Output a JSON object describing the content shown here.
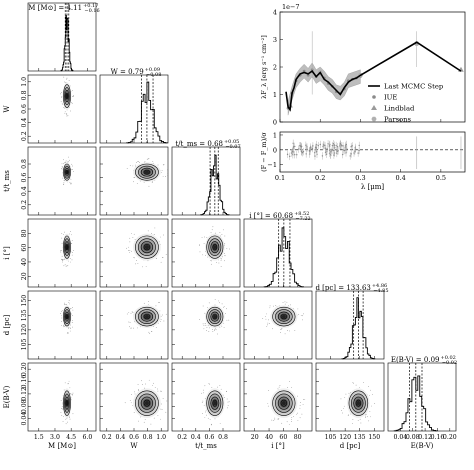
{
  "chart_data": [
    {
      "type": "corner",
      "parameters": [
        {
          "label": "M [M⊙]",
          "title": "M [M⊙] = 4.11",
          "sup": "+0.17",
          "sub": "−0.16",
          "median": 4.11,
          "q16": 3.95,
          "q84": 4.28,
          "range": [
            0.5,
            6.8
          ],
          "ticks": [
            1.5,
            3.0,
            4.5,
            6.0
          ],
          "tick_labels": [
            "1.5",
            "3.0",
            "4.5",
            "6.0"
          ]
        },
        {
          "label": "W",
          "title": "W = 0.79",
          "sup": "+0.09",
          "sub": "−0.08",
          "median": 0.79,
          "q16": 0.71,
          "q84": 0.88,
          "range": [
            0.1,
            1.1
          ],
          "ticks": [
            0.2,
            0.4,
            0.6,
            0.8,
            1.0
          ],
          "tick_labels": [
            "0.2",
            "0.4",
            "0.6",
            "0.8",
            "1.0"
          ]
        },
        {
          "label": "t/t_ms",
          "title": "t/t_ms = 0.68",
          "sup": "+0.05",
          "sub": "−0.07",
          "median": 0.68,
          "q16": 0.61,
          "q84": 0.73,
          "range": [
            0.05,
            1.05
          ],
          "ticks": [
            0.2,
            0.4,
            0.6,
            0.8
          ],
          "tick_labels": [
            "0.2",
            "0.4",
            "0.6",
            "0.8"
          ]
        },
        {
          "label": "i [°]",
          "title": "i [°] = 60.68",
          "sup": "+8.52",
          "sub": "−7.22",
          "median": 60.68,
          "q16": 53.46,
          "q84": 69.2,
          "range": [
            5,
            100
          ],
          "ticks": [
            20,
            40,
            60,
            80
          ],
          "tick_labels": [
            "20",
            "40",
            "60",
            "80"
          ]
        },
        {
          "label": "d [pc]",
          "title": "d [pc] = 133.63",
          "sup": "+4.86",
          "sub": "−4.85",
          "median": 133.63,
          "q16": 128.78,
          "q84": 138.49,
          "range": [
            90,
            160
          ],
          "ticks": [
            105,
            120,
            135,
            150
          ],
          "tick_labels": [
            "105",
            "120",
            "135",
            "150"
          ]
        },
        {
          "label": "E(B-V)",
          "title": "E(B-V) = 0.09",
          "sup": "+0.02",
          "sub": "−0.02",
          "median": 0.09,
          "q16": 0.07,
          "q84": 0.11,
          "range": [
            0.0,
            0.22
          ],
          "ticks": [
            0.04,
            0.08,
            0.12,
            0.16,
            0.2
          ],
          "tick_labels": [
            "0.04",
            "0.08",
            "0.12",
            "0.16",
            "0.20"
          ]
        }
      ]
    },
    {
      "type": "line",
      "multiplier": "1e−7",
      "ylabel": "λF_λ [erg s⁻¹ cm⁻²]",
      "xlim": [
        0.1,
        0.56
      ],
      "ylim": [
        0,
        4
      ],
      "yticks": [
        0,
        1,
        2,
        3,
        4
      ],
      "ytick_labels": [
        "0",
        "1",
        "2",
        "3",
        "4"
      ],
      "legend_position": "lower-right",
      "series": [
        {
          "name": "Last MCMC Step",
          "x": [
            0.115,
            0.12,
            0.125,
            0.13,
            0.135,
            0.14,
            0.15,
            0.16,
            0.17,
            0.18,
            0.19,
            0.2,
            0.21,
            0.22,
            0.23,
            0.24,
            0.25,
            0.26,
            0.27,
            0.28,
            0.29,
            0.3,
            0.44,
            0.55
          ],
          "y": [
            1.1,
            0.55,
            0.45,
            1.05,
            1.25,
            1.55,
            1.75,
            1.8,
            1.75,
            1.85,
            1.65,
            1.8,
            1.55,
            1.45,
            1.3,
            1.15,
            1.0,
            1.25,
            1.45,
            1.55,
            1.6,
            1.7,
            2.9,
            1.85
          ]
        },
        {
          "name": "IUE",
          "x": [
            0.12,
            0.13,
            0.14,
            0.15,
            0.16,
            0.17,
            0.18,
            0.19,
            0.2,
            0.21,
            0.22,
            0.23,
            0.24,
            0.25,
            0.26,
            0.27,
            0.28,
            0.29,
            0.3
          ],
          "y": [
            0.5,
            1.05,
            1.5,
            1.7,
            1.85,
            1.7,
            1.9,
            1.65,
            1.75,
            1.6,
            1.4,
            1.3,
            1.1,
            1.05,
            1.2,
            1.5,
            1.55,
            1.6,
            1.65
          ]
        },
        {
          "name": "Lindblad",
          "x": [
            0.125,
            0.55
          ],
          "y": [
            0.6,
            1.9
          ]
        },
        {
          "name": "Parsons",
          "x": [
            0.2,
            0.3,
            0.44
          ],
          "y": [
            1.8,
            1.7,
            2.85
          ]
        }
      ]
    },
    {
      "type": "scatter",
      "ylabel": "(F − F_m)/σ",
      "xlabel": "λ [μm]",
      "xlim": [
        0.1,
        0.56
      ],
      "ylim": [
        -1.5,
        1.2
      ],
      "xticks": [
        0.1,
        0.2,
        0.3,
        0.4,
        0.5
      ],
      "xtick_labels": [
        "0.1",
        "0.2",
        "0.3",
        "0.4",
        "0.5"
      ],
      "yticks": [
        -1,
        0,
        1
      ],
      "ytick_labels": [
        "−1",
        "0",
        "1"
      ],
      "reference_line": 0
    }
  ]
}
